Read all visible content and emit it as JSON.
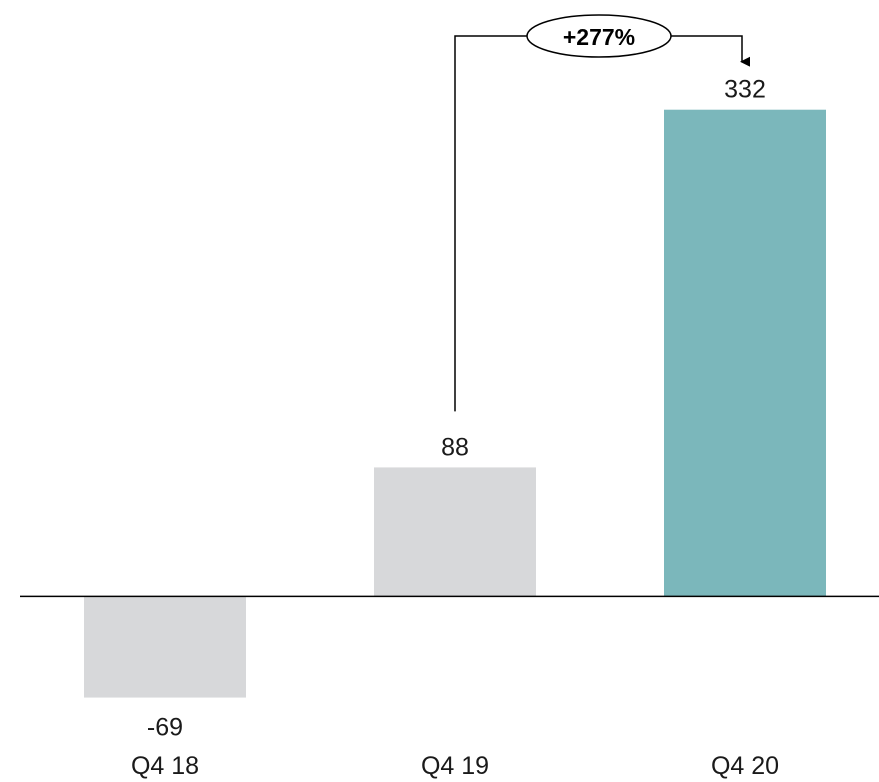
{
  "chart_data": {
    "type": "bar",
    "categories": [
      "Q4 18",
      "Q4 19",
      "Q4 20"
    ],
    "values": [
      -69,
      88,
      332
    ],
    "value_labels": [
      "-69",
      "88",
      "332"
    ],
    "bar_colors": [
      "#d7d8da",
      "#d7d8da",
      "#7bb7bb"
    ],
    "ylim": [
      -115,
      370
    ],
    "grid": false,
    "legend": "none",
    "title": "",
    "xlabel": "",
    "ylabel": "",
    "annotation": {
      "text": "+277%",
      "from_category": "Q4 19",
      "to_category": "Q4 20"
    }
  },
  "colors": {
    "axis": "#000000",
    "text": "#1a1a1a",
    "bar_default": "#d7d8da",
    "bar_highlight": "#7bb7bb"
  }
}
